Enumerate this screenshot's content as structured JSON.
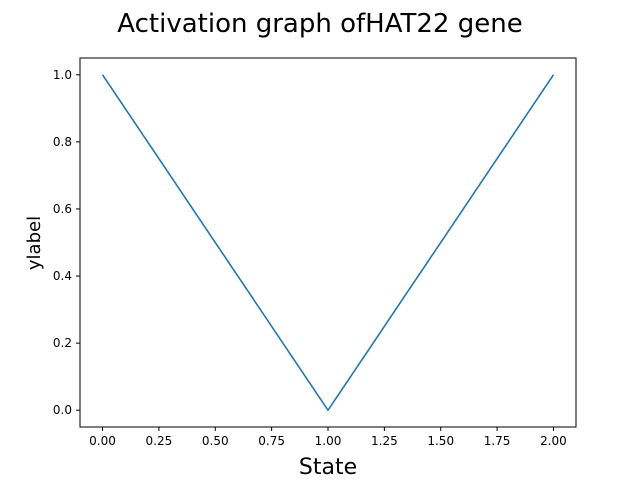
{
  "chart_data": {
    "type": "line",
    "title": "Activation graph ofHAT22 gene",
    "xlabel": "State",
    "ylabel": "ylabel",
    "x": [
      0,
      1,
      2
    ],
    "series": [
      {
        "values": [
          1.0,
          0.0,
          1.0
        ],
        "color": "#1f77b4"
      }
    ],
    "xlim": [
      -0.1,
      2.1
    ],
    "ylim": [
      -0.05,
      1.05
    ],
    "xticks": [
      0.0,
      0.25,
      0.5,
      0.75,
      1.0,
      1.25,
      1.5,
      1.75,
      2.0
    ],
    "xtick_labels": [
      "0.00",
      "0.25",
      "0.50",
      "0.75",
      "1.00",
      "1.25",
      "1.50",
      "1.75",
      "2.00"
    ],
    "yticks": [
      0.0,
      0.2,
      0.4,
      0.6,
      0.8,
      1.0
    ],
    "ytick_labels": [
      "0.0",
      "0.2",
      "0.4",
      "0.6",
      "0.8",
      "1.0"
    ],
    "grid": false,
    "legend": "none"
  }
}
